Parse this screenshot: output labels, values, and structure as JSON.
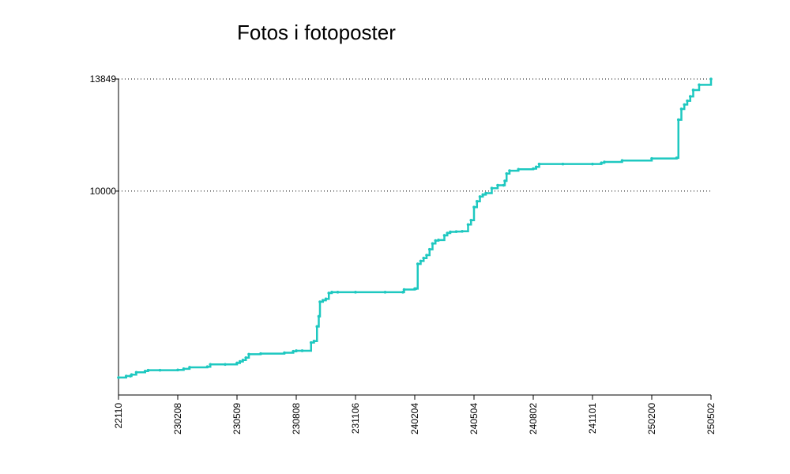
{
  "chart_data": {
    "type": "line",
    "title": "Fotos i fotoposter",
    "xlabel": "",
    "ylabel": "",
    "x_tick_labels": [
      "22110",
      "230208",
      "230509",
      "230808",
      "231106",
      "240204",
      "240504",
      "240802",
      "241101",
      "250200",
      "250502"
    ],
    "y_tick_labels": [
      "10000",
      "13849"
    ],
    "y_ticks": [
      10000,
      13849
    ],
    "xlim": [
      0,
      10
    ],
    "ylim": [
      3000,
      13849
    ],
    "grid": "horizontal dotted at y ticks",
    "series": [
      {
        "color": "#1ec8c0",
        "x": [
          0,
          0.13,
          0.2,
          0.22,
          0.3,
          0.45,
          0.5,
          0.7,
          1.0,
          1.1,
          1.2,
          1.5,
          1.55,
          1.8,
          2.0,
          2.05,
          2.1,
          2.15,
          2.2,
          2.4,
          2.8,
          2.95,
          3.0,
          3.1,
          3.25,
          3.3,
          3.35,
          3.38,
          3.4,
          3.45,
          3.5,
          3.55,
          3.6,
          3.7,
          4.0,
          4.5,
          4.8,
          4.82,
          5.0,
          5.02,
          5.05,
          5.1,
          5.15,
          5.2,
          5.25,
          5.3,
          5.35,
          5.4,
          5.5,
          5.55,
          5.6,
          5.7,
          5.8,
          5.9,
          5.95,
          6.0,
          6.05,
          6.1,
          6.15,
          6.2,
          6.3,
          6.4,
          6.5,
          6.52,
          6.55,
          6.6,
          6.75,
          7.0,
          7.05,
          7.1,
          7.5,
          8.0,
          8.15,
          8.2,
          8.5,
          9.0,
          9.42,
          9.45,
          9.5,
          9.55,
          9.6,
          9.65,
          9.7,
          9.8,
          10.0
        ],
        "y": [
          3600,
          3650,
          3650,
          3700,
          3780,
          3820,
          3850,
          3850,
          3860,
          3900,
          3950,
          3970,
          4050,
          4050,
          4100,
          4150,
          4200,
          4280,
          4400,
          4420,
          4450,
          4500,
          4520,
          4520,
          4800,
          4850,
          5350,
          5700,
          6200,
          6250,
          6300,
          6500,
          6530,
          6530,
          6530,
          6530,
          6530,
          6620,
          6650,
          6650,
          7500,
          7600,
          7700,
          7800,
          8000,
          8200,
          8300,
          8320,
          8480,
          8560,
          8600,
          8610,
          8620,
          8850,
          9000,
          9450,
          9650,
          9810,
          9880,
          9930,
          10100,
          10200,
          10200,
          10350,
          10600,
          10700,
          10750,
          10770,
          10830,
          10930,
          10930,
          10930,
          10970,
          11000,
          11050,
          11120,
          11140,
          12450,
          12820,
          12970,
          13100,
          13250,
          13470,
          13650,
          13849
        ]
      }
    ]
  }
}
